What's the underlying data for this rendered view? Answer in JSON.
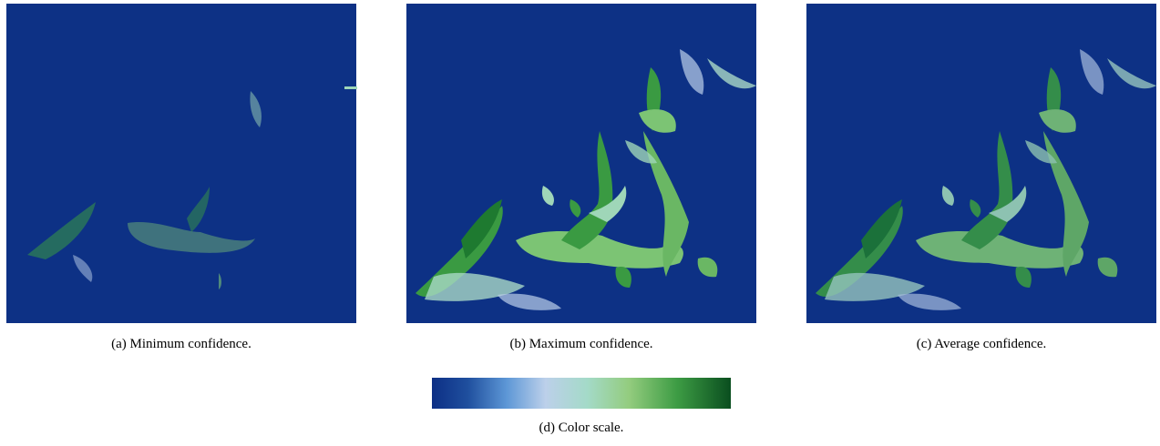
{
  "figure": {
    "panels": [
      {
        "caption": "(a) Minimum confidence."
      },
      {
        "caption": "(b) Maximum confidence."
      },
      {
        "caption": "(c) Average confidence."
      }
    ],
    "colorbar": {
      "caption": "(d) Color scale."
    }
  }
}
